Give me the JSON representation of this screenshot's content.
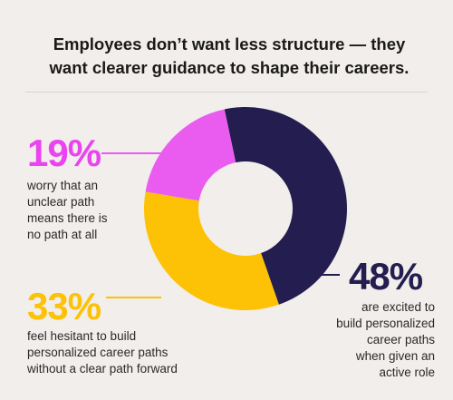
{
  "headline": {
    "line1": "Employees don’t want less structure — they",
    "line2": "want clearer guidance to shape their careers."
  },
  "colors": {
    "background": "#f1eeeb",
    "magenta": "#ea5cf0",
    "yellow": "#fdc106",
    "navy": "#241d4f",
    "pct_19": "#ea44f0",
    "pct_33": "#fdc106",
    "pct_48": "#241d4f"
  },
  "chart_data": {
    "type": "pie",
    "subtype": "donut",
    "title": "",
    "slices": [
      {
        "label": "48%",
        "value": 48,
        "color": "#241d4f",
        "description": [
          "are excited to",
          "build personalized",
          "career paths",
          "when given an",
          "active role"
        ]
      },
      {
        "label": "33%",
        "value": 33,
        "color": "#fdc106",
        "description": [
          "feel hesitant to build",
          "personalized career paths",
          "without a clear path forward"
        ]
      },
      {
        "label": "19%",
        "value": 19,
        "color": "#ea5cf0",
        "description": [
          "worry that an",
          "unclear path",
          "means there is",
          "no path at all"
        ]
      }
    ]
  }
}
